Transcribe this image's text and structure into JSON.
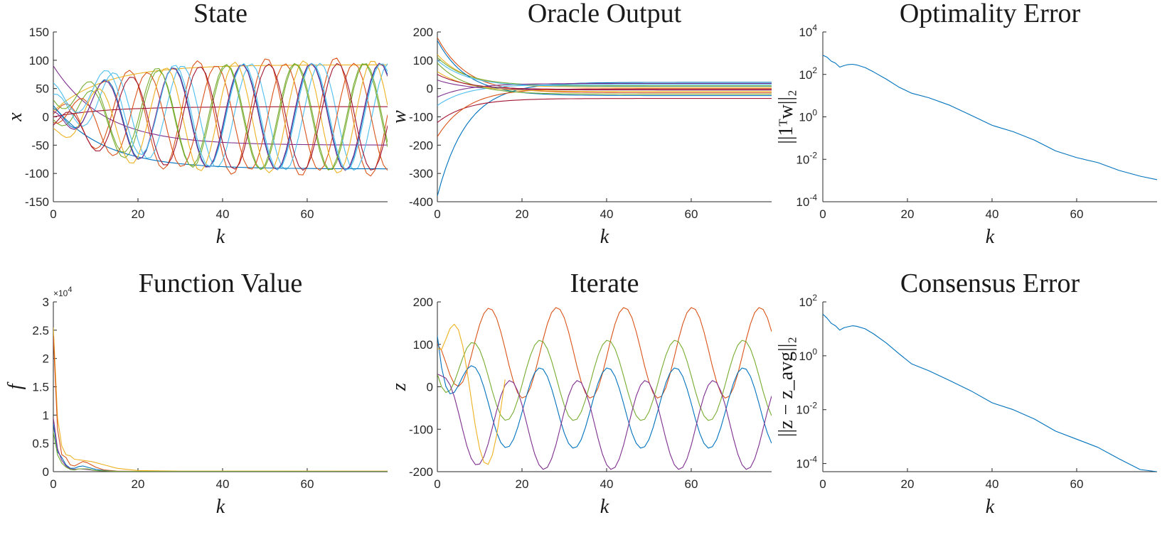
{
  "chart_data": [
    {
      "type": "line",
      "title": "State",
      "xlabel": "k",
      "ylabel": "x",
      "xlim": [
        0,
        79
      ],
      "ylim": [
        -150,
        150
      ],
      "xticks": [
        0,
        20,
        40,
        60
      ],
      "yticks": [
        -150,
        -100,
        -50,
        0,
        50,
        100,
        150
      ],
      "series": [
        {
          "kind": "osc",
          "color": "#0072BD",
          "offset": 0,
          "amp": 95,
          "period": 16.3,
          "phase": 3.2,
          "start": 15,
          "ramp": 12
        },
        {
          "kind": "osc",
          "color": "#D95319",
          "offset": 0,
          "amp": 105,
          "period": 16.3,
          "phase": 1.0,
          "start": 5,
          "ramp": 12
        },
        {
          "kind": "osc",
          "color": "#EDB120",
          "offset": 92,
          "amp": 0,
          "period": 16.3,
          "phase": 0,
          "start": 10,
          "ramp": 12
        },
        {
          "kind": "osc",
          "color": "#7E2F8E",
          "offset": -50,
          "amp": 0,
          "period": 16.3,
          "phase": 0,
          "start": 90,
          "ramp": 12
        },
        {
          "kind": "osc",
          "color": "#77AC30",
          "offset": 0,
          "amp": 95,
          "period": 16.3,
          "phase": 4.6,
          "start": -5,
          "ramp": 12
        },
        {
          "kind": "osc",
          "color": "#4DBEEE",
          "offset": 0,
          "amp": 95,
          "period": 16.3,
          "phase": 2.4,
          "start": 40,
          "ramp": 12
        },
        {
          "kind": "osc",
          "color": "#A2142F",
          "offset": 18,
          "amp": 0,
          "period": 16.3,
          "phase": 0,
          "start": 0,
          "ramp": 12
        },
        {
          "kind": "osc",
          "color": "#0072BD",
          "offset": -92,
          "amp": 0,
          "period": 16.3,
          "phase": 0,
          "start": 20,
          "ramp": 12
        },
        {
          "kind": "osc",
          "color": "#D95319",
          "offset": 0,
          "amp": 95,
          "period": 16.3,
          "phase": 5.6,
          "start": -10,
          "ramp": 12
        },
        {
          "kind": "osc",
          "color": "#EDB120",
          "offset": 0,
          "amp": 100,
          "period": 16.3,
          "phase": 3.9,
          "start": -20,
          "ramp": 12
        },
        {
          "kind": "osc",
          "color": "#7E2F8E",
          "offset": 0,
          "amp": 95,
          "period": 16.3,
          "phase": 3.25,
          "start": 10,
          "ramp": 12
        },
        {
          "kind": "osc",
          "color": "#77AC30",
          "offset": 0,
          "amp": 95,
          "period": 16.3,
          "phase": 4.7,
          "start": 30,
          "ramp": 12
        },
        {
          "kind": "osc",
          "color": "#4DBEEE",
          "offset": 0,
          "amp": 95,
          "period": 16.3,
          "phase": 3.1,
          "start": 60,
          "ramp": 12
        },
        {
          "kind": "osc",
          "color": "#A2142F",
          "offset": 0,
          "amp": 95,
          "period": 16.3,
          "phase": 0.8,
          "start": -15,
          "ramp": 12
        }
      ]
    },
    {
      "type": "line",
      "title": "Oracle Output",
      "xlabel": "k",
      "ylabel": "w",
      "xlim": [
        0,
        79
      ],
      "ylim": [
        -400,
        200
      ],
      "xticks": [
        0,
        20,
        40,
        60
      ],
      "yticks": [
        -400,
        -300,
        -200,
        -100,
        0,
        100,
        200
      ],
      "series": [
        {
          "kind": "osc",
          "color": "#0072BD",
          "offset": 22,
          "amp": 0,
          "period": 16,
          "phase": 0,
          "start": -380,
          "ramp": 7
        },
        {
          "kind": "osc",
          "color": "#D95319",
          "offset": -15,
          "amp": 0,
          "period": 16,
          "phase": 0,
          "start": 180,
          "ramp": 7
        },
        {
          "kind": "osc",
          "color": "#EDB120",
          "offset": 5,
          "amp": 0,
          "period": 16,
          "phase": 0,
          "start": 120,
          "ramp": 7
        },
        {
          "kind": "osc",
          "color": "#7E2F8E",
          "offset": -5,
          "amp": 0,
          "period": 16,
          "phase": 0,
          "start": 30,
          "ramp": 7
        },
        {
          "kind": "osc",
          "color": "#77AC30",
          "offset": 10,
          "amp": 0,
          "period": 16,
          "phase": 0,
          "start": 110,
          "ramp": 7
        },
        {
          "kind": "osc",
          "color": "#4DBEEE",
          "offset": 15,
          "amp": 0,
          "period": 16,
          "phase": 0,
          "start": -60,
          "ramp": 7
        },
        {
          "kind": "osc",
          "color": "#A2142F",
          "offset": -35,
          "amp": 0,
          "period": 16,
          "phase": 0,
          "start": -120,
          "ramp": 7
        },
        {
          "kind": "osc",
          "color": "#0072BD",
          "offset": -25,
          "amp": 0,
          "period": 16,
          "phase": 0,
          "start": 170,
          "ramp": 7
        },
        {
          "kind": "osc",
          "color": "#D95319",
          "offset": 0,
          "amp": 0,
          "period": 16,
          "phase": 0,
          "start": -170,
          "ramp": 7
        },
        {
          "kind": "osc",
          "color": "#EDB120",
          "offset": -10,
          "amp": 0,
          "period": 16,
          "phase": 0,
          "start": 60,
          "ramp": 7
        },
        {
          "kind": "osc",
          "color": "#7E2F8E",
          "offset": 18,
          "amp": 0,
          "period": 16,
          "phase": 0,
          "start": -30,
          "ramp": 7
        },
        {
          "kind": "osc",
          "color": "#77AC30",
          "offset": -20,
          "amp": 0,
          "period": 16,
          "phase": 0,
          "start": 90,
          "ramp": 7
        },
        {
          "kind": "osc",
          "color": "#4DBEEE",
          "offset": 8,
          "amp": 0,
          "period": 16,
          "phase": 0,
          "start": 100,
          "ramp": 7
        },
        {
          "kind": "osc",
          "color": "#A2142F",
          "offset": -3,
          "amp": 0,
          "period": 16,
          "phase": 0,
          "start": 50,
          "ramp": 7
        }
      ]
    },
    {
      "type": "line",
      "title": "Optimality Error",
      "xlabel": "k",
      "ylabel": "||1ᵀw||₂",
      "xlim": [
        0,
        79
      ],
      "ylim": [
        0.0001,
        10000
      ],
      "yscale": "log",
      "xticks": [
        0,
        20,
        40,
        60
      ],
      "yticks": [
        -4,
        -2,
        0,
        2,
        4
      ],
      "series": [
        {
          "kind": "points",
          "color": "#0072BD",
          "x": [
            0,
            1,
            2,
            3,
            4,
            5,
            6,
            7,
            8,
            10,
            12,
            15,
            18,
            21,
            25,
            30,
            35,
            40,
            45,
            50,
            55,
            60,
            65,
            70,
            75,
            79
          ],
          "y": [
            800,
            650,
            420,
            340,
            220,
            260,
            290,
            300,
            280,
            210,
            130,
            60,
            25,
            13,
            8,
            3.5,
            1.2,
            0.4,
            0.2,
            0.08,
            0.025,
            0.012,
            0.007,
            0.003,
            0.0016,
            0.0011
          ]
        }
      ]
    },
    {
      "type": "line",
      "title": "Function Value",
      "xlabel": "k",
      "ylabel": "f",
      "xlim": [
        0,
        79
      ],
      "ylim": [
        0,
        3
      ],
      "exponent": "4",
      "xticks": [
        0,
        20,
        40,
        60
      ],
      "yticks": [
        0,
        0.5,
        1,
        1.5,
        2,
        2.5,
        3
      ],
      "series": [
        {
          "kind": "points",
          "color": "#EDB120",
          "x": [
            0,
            1,
            2,
            3,
            4,
            5,
            7,
            9,
            12,
            15,
            20,
            30,
            79
          ],
          "y": [
            2.55,
            0.95,
            0.45,
            0.3,
            0.28,
            0.22,
            0.2,
            0.18,
            0.12,
            0.06,
            0.02,
            0.01,
            0.01
          ]
        },
        {
          "kind": "points",
          "color": "#D95319",
          "x": [
            0,
            1,
            2,
            3,
            4,
            5,
            6,
            7,
            8,
            10,
            12,
            15,
            20,
            79
          ],
          "y": [
            2.4,
            0.75,
            0.3,
            0.25,
            0.12,
            0.1,
            0.14,
            0.18,
            0.16,
            0.08,
            0.03,
            0.01,
            0.005,
            0.005
          ]
        },
        {
          "kind": "points",
          "color": "#0072BD",
          "x": [
            0,
            1,
            2,
            3,
            4,
            5,
            6,
            7,
            8,
            10,
            12,
            15,
            20,
            79
          ],
          "y": [
            0.85,
            0.35,
            0.25,
            0.12,
            0.06,
            0.06,
            0.09,
            0.1,
            0.08,
            0.04,
            0.02,
            0.005,
            0.002,
            0.002
          ]
        },
        {
          "kind": "points",
          "color": "#7E2F8E",
          "x": [
            0,
            1,
            2,
            3,
            4,
            5,
            6,
            8,
            10,
            15,
            79
          ],
          "y": [
            0.95,
            0.4,
            0.2,
            0.1,
            0.05,
            0.04,
            0.05,
            0.04,
            0.02,
            0.005,
            0.002
          ]
        },
        {
          "kind": "points",
          "color": "#77AC30",
          "x": [
            0,
            1,
            2,
            3,
            4,
            5,
            6,
            8,
            10,
            15,
            79
          ],
          "y": [
            0.7,
            0.3,
            0.15,
            0.08,
            0.04,
            0.03,
            0.05,
            0.05,
            0.02,
            0.005,
            0.002
          ]
        }
      ]
    },
    {
      "type": "line",
      "title": "Iterate",
      "xlabel": "k",
      "ylabel": "z",
      "xlim": [
        0,
        79
      ],
      "ylim": [
        -200,
        200
      ],
      "xticks": [
        0,
        20,
        40,
        60
      ],
      "yticks": [
        -200,
        -100,
        0,
        100,
        200
      ],
      "series": [
        {
          "kind": "osc",
          "color": "#D95319",
          "offset": 80,
          "amp": 107,
          "period": 16,
          "phase": 3.05,
          "start": 100,
          "ramp": 3
        },
        {
          "kind": "osc",
          "color": "#77AC30",
          "offset": 15,
          "amp": 95,
          "period": 16,
          "phase": 4.6,
          "start": 30,
          "ramp": 3
        },
        {
          "kind": "osc",
          "color": "#0072BD",
          "offset": -50,
          "amp": 95,
          "period": 16,
          "phase": 4.6,
          "start": 120,
          "ramp": 3
        },
        {
          "kind": "osc",
          "color": "#7E2F8E",
          "offset": -90,
          "amp": 105,
          "period": 16,
          "phase": 1.1,
          "start": 30,
          "ramp": 3
        },
        {
          "kind": "osc",
          "color": "#EDB120",
          "offset": -10,
          "amp": 180,
          "period": 16,
          "phase": 0.15,
          "start": 90,
          "ramp": 3,
          "end": 16
        }
      ]
    },
    {
      "type": "line",
      "title": "Consensus Error",
      "xlabel": "k",
      "ylabel": "||z − z_avg||₂",
      "xlim": [
        0,
        79
      ],
      "ylim": [
        5e-05,
        100
      ],
      "yscale": "log",
      "xticks": [
        0,
        20,
        40,
        60
      ],
      "yticks": [
        -4,
        -2,
        0,
        2
      ],
      "series": [
        {
          "kind": "points",
          "color": "#0072BD",
          "x": [
            0,
            1,
            2,
            3,
            4,
            5,
            6,
            7,
            8,
            10,
            12,
            15,
            18,
            21,
            25,
            30,
            35,
            40,
            45,
            50,
            55,
            60,
            65,
            70,
            75,
            79
          ],
          "y": [
            35,
            25,
            16,
            13,
            9,
            11,
            12,
            13,
            12.5,
            10,
            6.5,
            3,
            1.2,
            0.5,
            0.28,
            0.12,
            0.05,
            0.018,
            0.01,
            0.0045,
            0.0016,
            0.0008,
            0.0004,
            0.00015,
            6e-05,
            5e-05
          ]
        }
      ]
    }
  ]
}
